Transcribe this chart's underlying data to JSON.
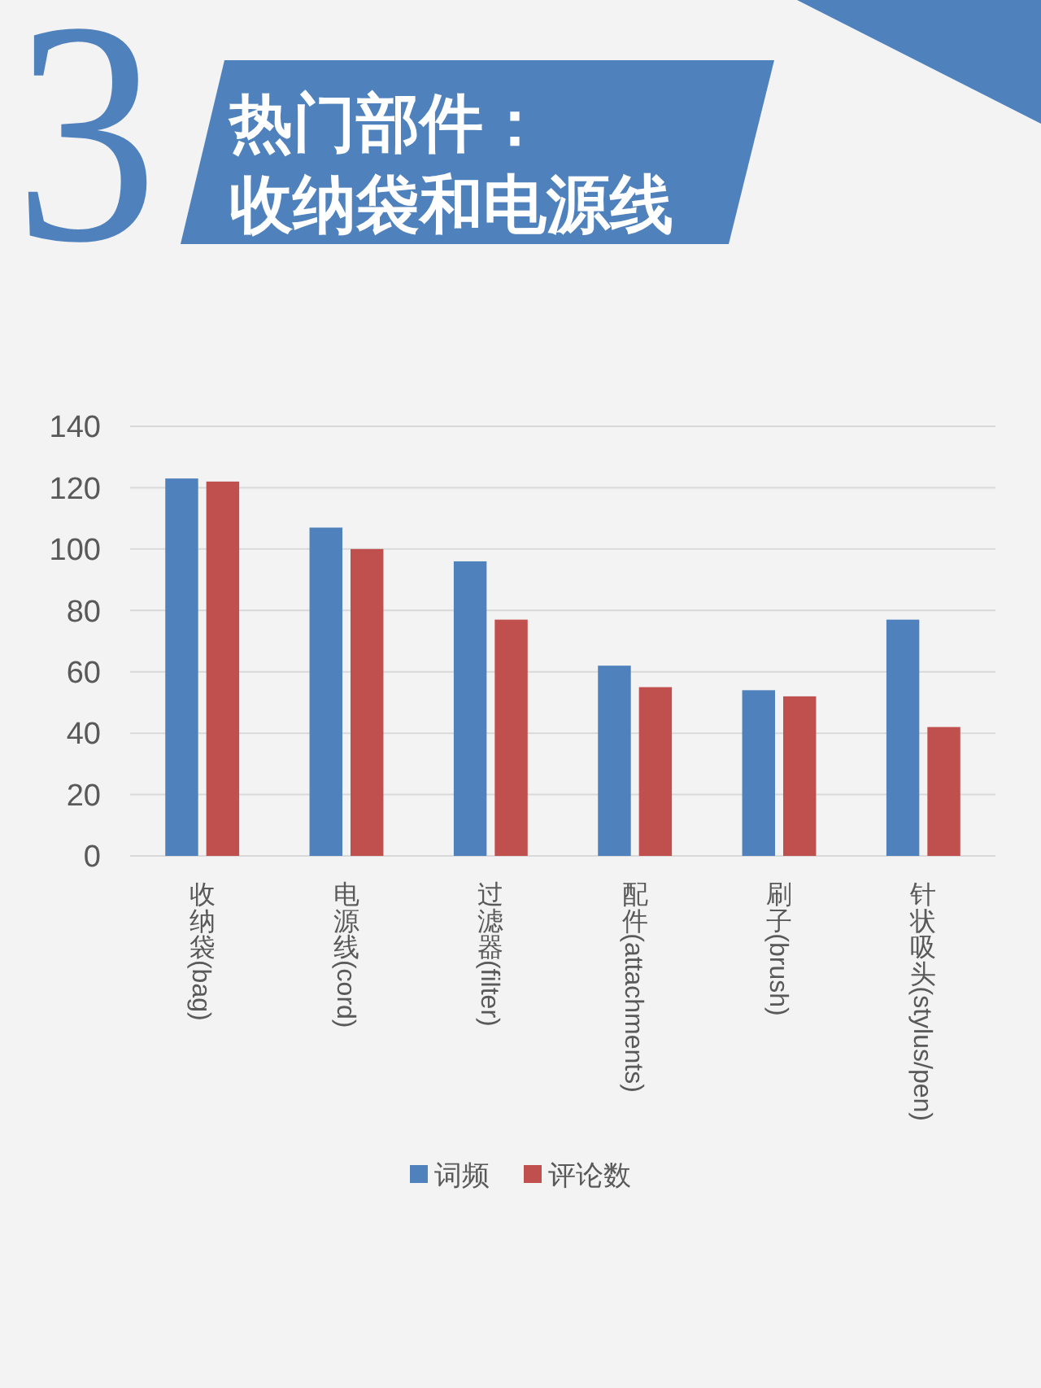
{
  "chart_data": {
    "type": "bar",
    "title": "热门部件：收纳袋和电源线",
    "annotations": [
      "3"
    ],
    "categories": [
      "收纳袋(bag)",
      "电源线(cord)",
      "过滤器(filter)",
      "配件(attachments)",
      "刷子(brush)",
      "针状吸头(stylus/pen)"
    ],
    "series": [
      {
        "name": "词频",
        "color": "#4f81bd",
        "values": [
          123,
          107,
          96,
          62,
          54,
          77
        ]
      },
      {
        "name": "评论数",
        "color": "#c0504d",
        "values": [
          122,
          100,
          77,
          55,
          52,
          42
        ]
      }
    ],
    "ylim": [
      0,
      140
    ],
    "yticks": [
      0,
      20,
      40,
      60,
      80,
      100,
      120,
      140
    ],
    "grid": "y",
    "legend": "bottom"
  }
}
